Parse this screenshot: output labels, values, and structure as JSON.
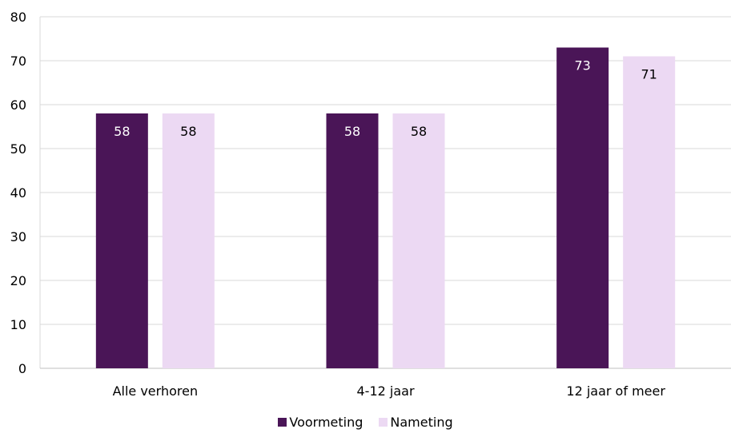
{
  "chart_data": {
    "type": "bar",
    "categories": [
      "Alle verhoren",
      "4-12 jaar",
      "12 jaar of meer"
    ],
    "series": [
      {
        "name": "Voormeting",
        "values": [
          58,
          58,
          73
        ],
        "color": "#4a1557"
      },
      {
        "name": "Nameting",
        "values": [
          58,
          58,
          71
        ],
        "color": "#ecd9f3"
      }
    ],
    "ylim": [
      0,
      80
    ],
    "yticks": [
      0,
      10,
      20,
      30,
      40,
      50,
      60,
      70,
      80
    ],
    "grid": true,
    "legend_position": "bottom-center",
    "data_labels": true,
    "title": "",
    "xlabel": "",
    "ylabel": ""
  },
  "legend": {
    "items": [
      {
        "label": "Voormeting",
        "color": "#4a1557"
      },
      {
        "label": "Nameting",
        "color": "#ecd9f3"
      }
    ]
  }
}
